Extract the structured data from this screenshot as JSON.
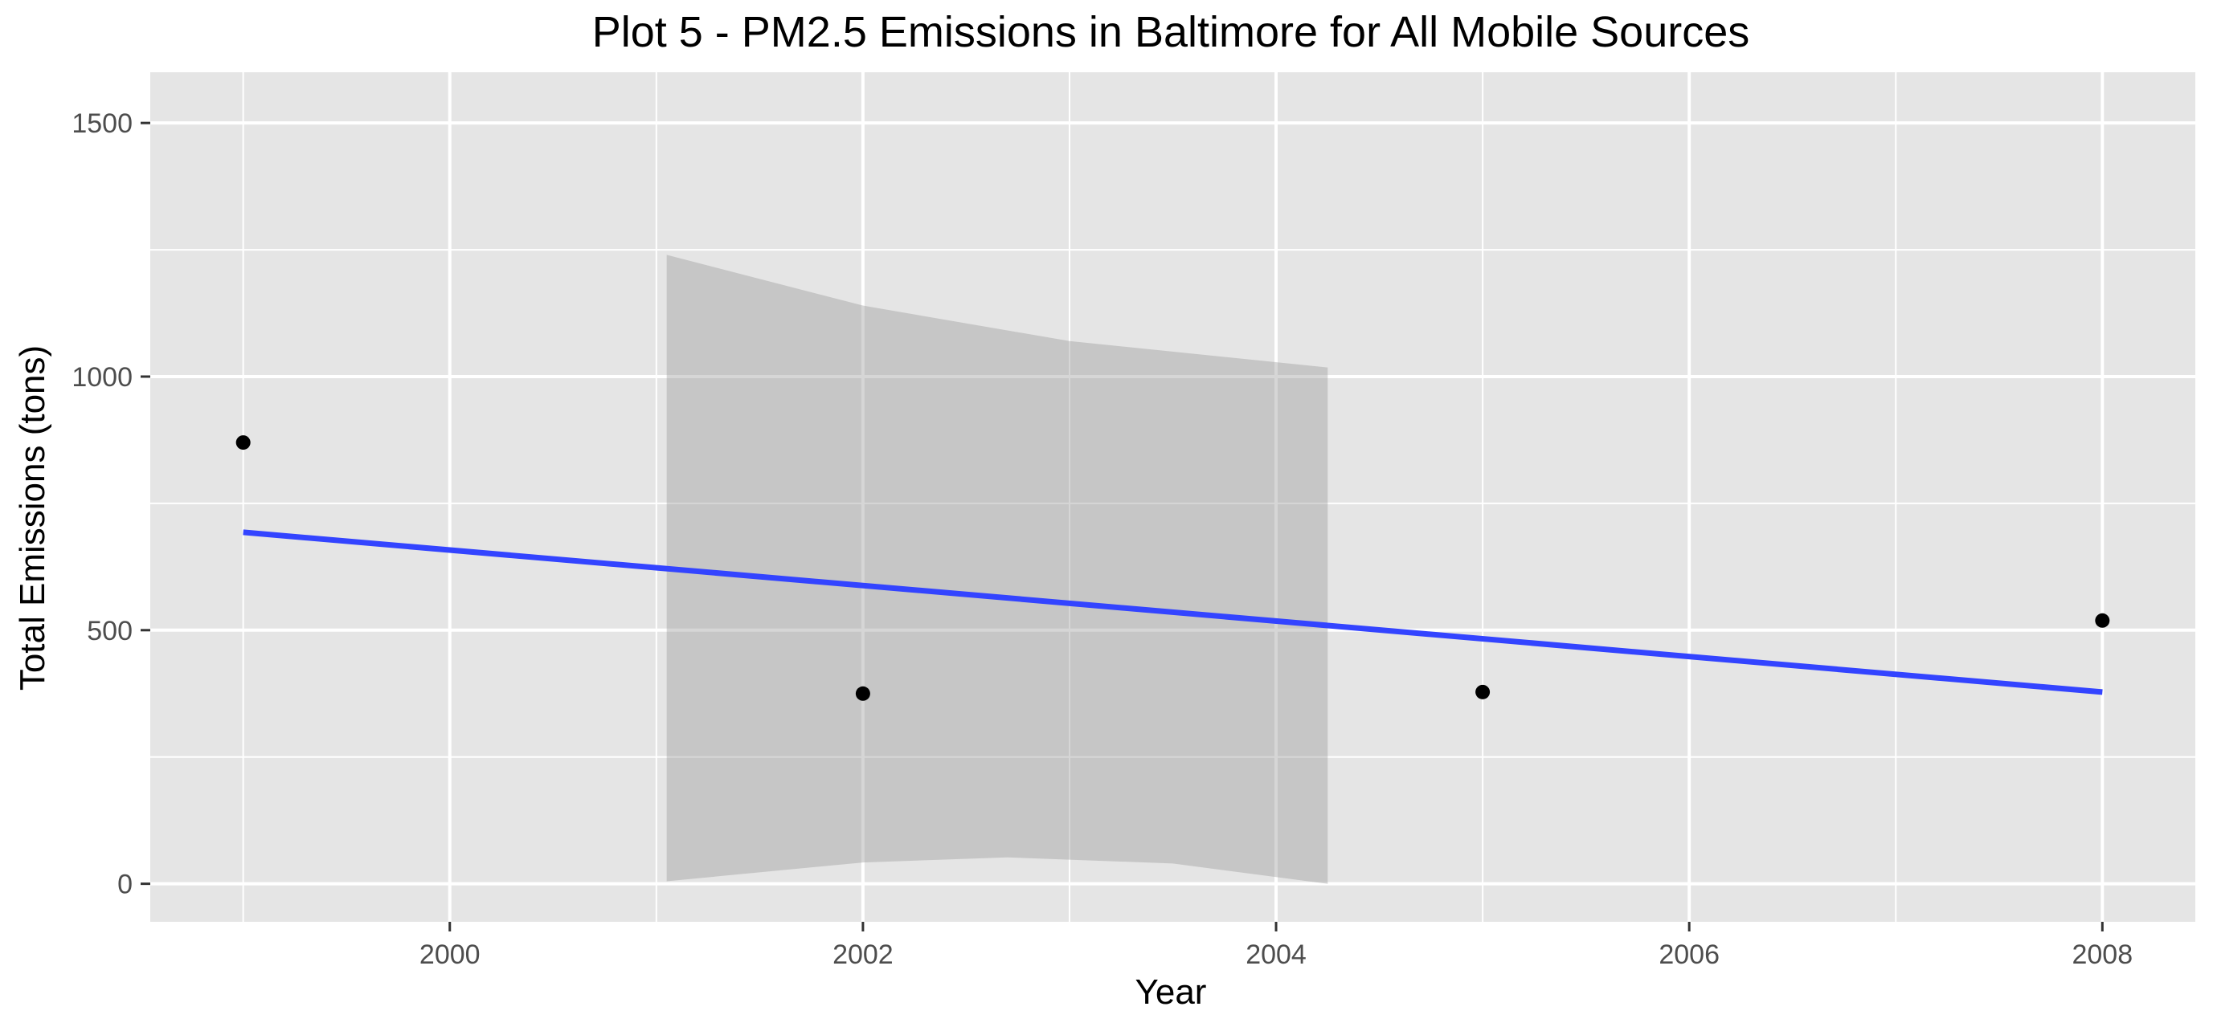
{
  "chart_data": {
    "type": "scatter",
    "title": "Plot 5 - PM2.5 Emissions in Baltimore for All Mobile Sources",
    "xlabel": "Year",
    "ylabel": "Total Emissions (tons)",
    "xlim": [
      1998.55,
      2008.45
    ],
    "ylim": [
      -75,
      1600
    ],
    "x_ticks": [
      2000,
      2002,
      2004,
      2006,
      2008
    ],
    "x_tick_labels": [
      "2000",
      "2002",
      "2004",
      "2006",
      "2008"
    ],
    "y_ticks": [
      0,
      500,
      1000,
      1500
    ],
    "y_tick_labels": [
      "0",
      "500",
      "1000",
      "1500"
    ],
    "grid": true,
    "legend": "none",
    "points": [
      {
        "x": 1999,
        "y": 870
      },
      {
        "x": 2002,
        "y": 375
      },
      {
        "x": 2005,
        "y": 378
      },
      {
        "x": 2008,
        "y": 519
      }
    ],
    "trend_line": {
      "method": "linear fit",
      "start": {
        "x": 1999,
        "y": 693
      },
      "end": {
        "x": 2008,
        "y": 378
      }
    },
    "confidence_band": {
      "upper": [
        [
          2001.05,
          1240
        ],
        [
          2002,
          1140
        ],
        [
          2003,
          1070
        ],
        [
          2004.25,
          1018
        ]
      ],
      "lower": [
        [
          2001.05,
          5
        ],
        [
          2002,
          42
        ],
        [
          2002.7,
          52
        ],
        [
          2003.5,
          40
        ],
        [
          2004.25,
          0
        ]
      ]
    },
    "colors": {
      "panel_background": "#e5e5e5",
      "grid": "#ffffff",
      "points": "#000000",
      "trend_line": "#3344ff",
      "confidence_band": "#999999"
    }
  }
}
